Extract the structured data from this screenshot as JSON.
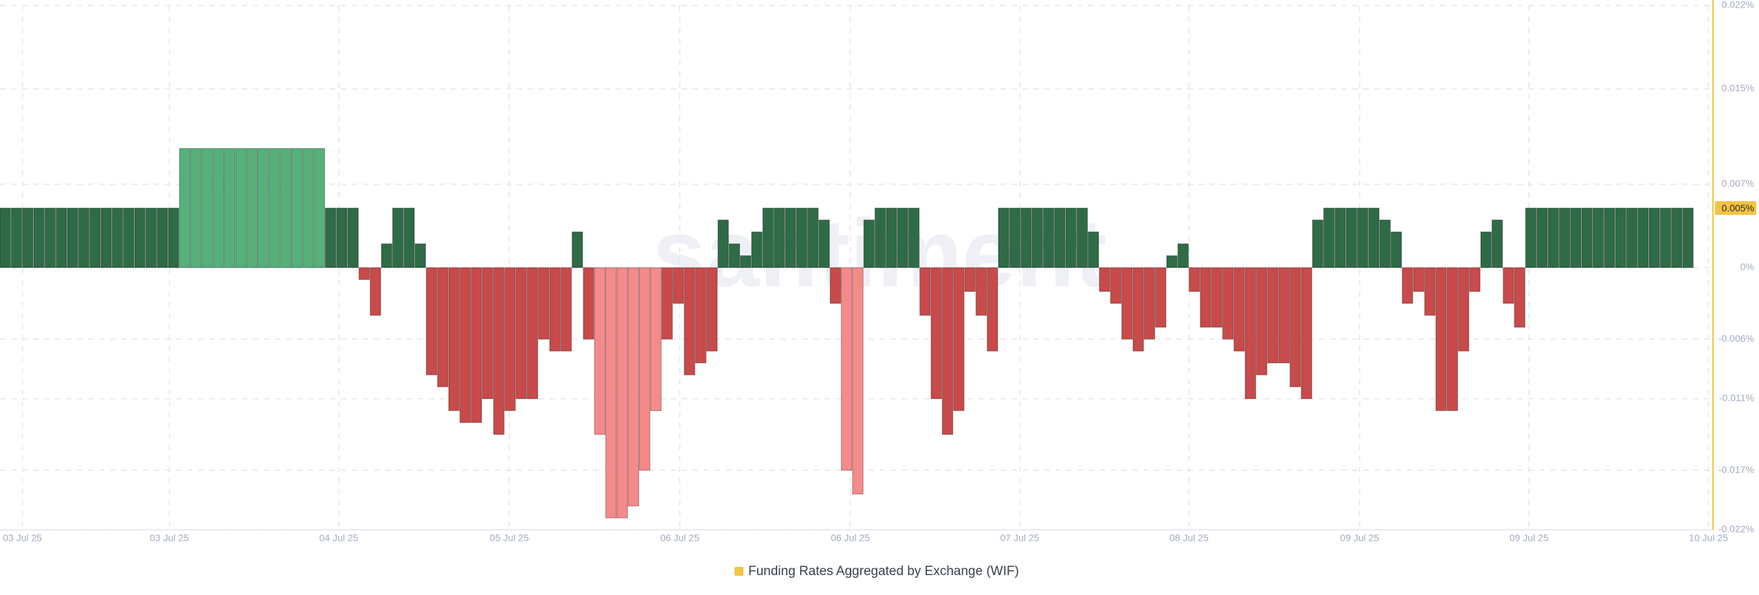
{
  "chart_data": {
    "type": "bar",
    "legend_label": "Funding Rates Aggregated by Exchange (WIF)",
    "legend_color": "#f5c342",
    "watermark": "santiment",
    "current_value": {
      "value": 0.005,
      "label": "0.005%"
    },
    "xlim": [
      0,
      152.7
    ],
    "xticks": [
      {
        "value": 2,
        "label": "03 Jul 25"
      },
      {
        "value": 15.1,
        "label": "03 Jul 25"
      },
      {
        "value": 30.2,
        "label": "04 Jul 25"
      },
      {
        "value": 45.4,
        "label": "05 Jul 25"
      },
      {
        "value": 60.6,
        "label": "06 Jul 25"
      },
      {
        "value": 75.8,
        "label": "06 Jul 25"
      },
      {
        "value": 90.9,
        "label": "07 Jul 25"
      },
      {
        "value": 106,
        "label": "08 Jul 25"
      },
      {
        "value": 121.2,
        "label": "09 Jul 25"
      },
      {
        "value": 136.3,
        "label": "09 Jul 25"
      },
      {
        "value": 152.3,
        "label": "10 Jul 25"
      }
    ],
    "ylim": [
      -0.022,
      0.022
    ],
    "yticks": [
      {
        "value": 0.022,
        "label": "0.022%"
      },
      {
        "value": 0.015,
        "label": "0.015%"
      },
      {
        "value": 0.007,
        "label": "0.007%"
      },
      {
        "value": 0,
        "label": "0%"
      },
      {
        "value": -0.006,
        "label": "-0.006%"
      },
      {
        "value": -0.011,
        "label": "-0.011%"
      },
      {
        "value": -0.017,
        "label": "-0.017%"
      },
      {
        "value": -0.022,
        "label": "-0.022%"
      }
    ],
    "grid": true,
    "values": [
      0.005,
      0.005,
      0.005,
      0.005,
      0.005,
      0.005,
      0.005,
      0.005,
      0.005,
      0.005,
      0.005,
      0.005,
      0.005,
      0.005,
      0.005,
      0.005,
      0.01,
      0.01,
      0.01,
      0.01,
      0.01,
      0.01,
      0.01,
      0.01,
      0.01,
      0.01,
      0.01,
      0.01,
      0.01,
      0.005,
      0.005,
      0.005,
      -0.001,
      -0.004,
      0.002,
      0.005,
      0.005,
      0.002,
      -0.009,
      -0.01,
      -0.012,
      -0.013,
      -0.013,
      -0.011,
      -0.014,
      -0.012,
      -0.011,
      -0.011,
      -0.006,
      -0.007,
      -0.007,
      0.003,
      -0.006,
      -0.014,
      -0.021,
      -0.021,
      -0.02,
      -0.017,
      -0.012,
      -0.006,
      -0.003,
      -0.009,
      -0.008,
      -0.007,
      0.004,
      0.002,
      0.001,
      0.003,
      0.005,
      0.005,
      0.005,
      0.005,
      0.005,
      0.004,
      -0.003,
      -0.017,
      -0.019,
      0.004,
      0.005,
      0.005,
      0.005,
      0.005,
      -0.004,
      -0.011,
      -0.014,
      -0.012,
      -0.002,
      -0.004,
      -0.007,
      0.005,
      0.005,
      0.005,
      0.005,
      0.005,
      0.005,
      0.005,
      0.005,
      0.003,
      -0.002,
      -0.003,
      -0.006,
      -0.007,
      -0.006,
      -0.005,
      0.001,
      0.002,
      -0.002,
      -0.005,
      -0.005,
      -0.006,
      -0.007,
      -0.011,
      -0.009,
      -0.008,
      -0.008,
      -0.01,
      -0.011,
      0.004,
      0.005,
      0.005,
      0.005,
      0.005,
      0.005,
      0.004,
      0.003,
      -0.003,
      -0.002,
      -0.004,
      -0.012,
      -0.012,
      -0.007,
      -0.002,
      0.003,
      0.004,
      -0.003,
      -0.005,
      0.005,
      0.005,
      0.005,
      0.005,
      0.005,
      0.005,
      0.005,
      0.005,
      0.005,
      0.005,
      0.005,
      0.005,
      0.005,
      0.005,
      0.005
    ],
    "colors": [
      "#2f6b47",
      "#2f6b47",
      "#2f6b47",
      "#2f6b47",
      "#2f6b47",
      "#2f6b47",
      "#2f6b47",
      "#2f6b47",
      "#2f6b47",
      "#2f6b47",
      "#2f6b47",
      "#2f6b47",
      "#2f6b47",
      "#2f6b47",
      "#2f6b47",
      "#2f6b47",
      "#55b07a",
      "#55b07a",
      "#55b07a",
      "#55b07a",
      "#55b07a",
      "#55b07a",
      "#55b07a",
      "#55b07a",
      "#55b07a",
      "#55b07a",
      "#55b07a",
      "#55b07a",
      "#55b07a",
      "#2f6b47",
      "#2f6b47",
      "#2f6b47",
      "#c84a4a",
      "#c84a4a",
      "#2f6b47",
      "#2f6b47",
      "#2f6b47",
      "#2f6b47",
      "#c84a4a",
      "#c84a4a",
      "#c84a4a",
      "#c84a4a",
      "#c84a4a",
      "#c84a4a",
      "#c84a4a",
      "#c84a4a",
      "#c84a4a",
      "#c84a4a",
      "#c84a4a",
      "#c84a4a",
      "#c84a4a",
      "#2f6b47",
      "#c84a4a",
      "#f58a8a",
      "#f58a8a",
      "#f58a8a",
      "#f58a8a",
      "#f58a8a",
      "#f58a8a",
      "#c84a4a",
      "#c84a4a",
      "#c84a4a",
      "#c84a4a",
      "#c84a4a",
      "#2f6b47",
      "#2f6b47",
      "#2f6b47",
      "#2f6b47",
      "#2f6b47",
      "#2f6b47",
      "#2f6b47",
      "#2f6b47",
      "#2f6b47",
      "#2f6b47",
      "#c84a4a",
      "#f58a8a",
      "#f58a8a",
      "#2f6b47",
      "#2f6b47",
      "#2f6b47",
      "#2f6b47",
      "#2f6b47",
      "#c84a4a",
      "#c84a4a",
      "#c84a4a",
      "#c84a4a",
      "#c84a4a",
      "#c84a4a",
      "#c84a4a",
      "#2f6b47",
      "#2f6b47",
      "#2f6b47",
      "#2f6b47",
      "#2f6b47",
      "#2f6b47",
      "#2f6b47",
      "#2f6b47",
      "#2f6b47",
      "#c84a4a",
      "#c84a4a",
      "#c84a4a",
      "#c84a4a",
      "#c84a4a",
      "#c84a4a",
      "#2f6b47",
      "#2f6b47",
      "#c84a4a",
      "#c84a4a",
      "#c84a4a",
      "#c84a4a",
      "#c84a4a",
      "#c84a4a",
      "#c84a4a",
      "#c84a4a",
      "#c84a4a",
      "#c84a4a",
      "#c84a4a",
      "#2f6b47",
      "#2f6b47",
      "#2f6b47",
      "#2f6b47",
      "#2f6b47",
      "#2f6b47",
      "#2f6b47",
      "#2f6b47",
      "#c84a4a",
      "#c84a4a",
      "#c84a4a",
      "#c84a4a",
      "#c84a4a",
      "#c84a4a",
      "#c84a4a",
      "#2f6b47",
      "#2f6b47",
      "#c84a4a",
      "#c84a4a",
      "#2f6b47",
      "#2f6b47",
      "#2f6b47",
      "#2f6b47",
      "#2f6b47",
      "#2f6b47",
      "#2f6b47",
      "#2f6b47",
      "#2f6b47",
      "#2f6b47",
      "#2f6b47",
      "#2f6b47",
      "#2f6b47",
      "#2f6b47",
      "#2f6b47"
    ]
  }
}
